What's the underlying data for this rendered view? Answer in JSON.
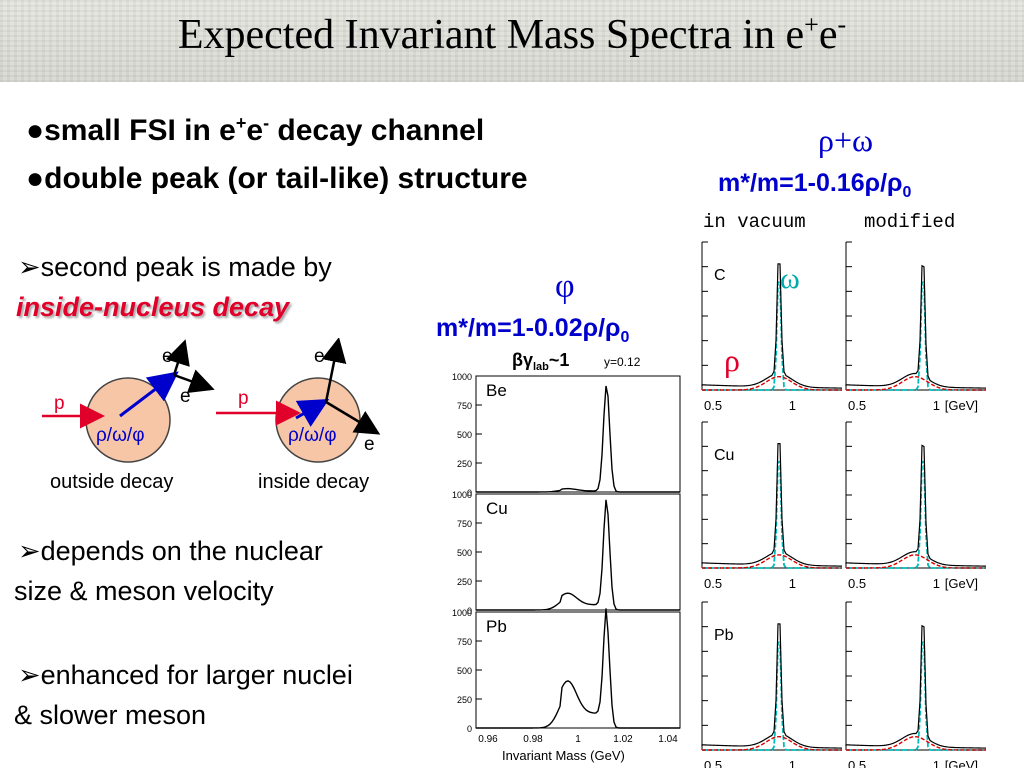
{
  "title": {
    "main": "Expected Invariant Mass Spectra in e",
    "sup1": "+",
    "mid": "e",
    "sup2": "-"
  },
  "bullets": [
    {
      "pre": "small FSI in e",
      "sup1": "+",
      "mid": "e",
      "sup2": "-",
      "post": " decay channel"
    },
    {
      "text": "double peak (or tail-like) structure"
    }
  ],
  "points": {
    "p1_line1": "second peak is made by",
    "p1_line2": "inside-nucleus decay",
    "p2_line1": "depends on the nuclear",
    "p2_line2": "size & meson velocity",
    "p3_line1": "enhanced for larger nuclei",
    "p3_line2": "& slower meson"
  },
  "diagram": {
    "e": "e",
    "p": "p",
    "meson": "ρ/ω/φ",
    "outside_caption": "outside decay",
    "inside_caption": "inside decay"
  },
  "phi_panel": {
    "symbol": "φ",
    "formula_pre": "m*/m=1-0.02ρ/ρ",
    "formula_sub": "0",
    "bg_label": "βγ",
    "bg_sub": "lab",
    "bg_val": "~1",
    "y_label": "y=0.12",
    "xlabel": "Invariant Mass (GeV)",
    "xticks": [
      "0.96",
      "0.98",
      "1",
      "1.02",
      "1.04"
    ],
    "yticks": [
      "1000",
      "750",
      "500",
      "250",
      "0"
    ],
    "panels": [
      "Be",
      "Cu",
      "Pb"
    ]
  },
  "rho_omega_panel": {
    "symbol": "ρ+ω",
    "formula_pre": "m*/m=1-0.16ρ/ρ",
    "formula_sub": "0",
    "col1": "in vacuum",
    "col2": "modified",
    "omega": "ω",
    "rho": "ρ",
    "rows": [
      "C",
      "Cu",
      "Pb"
    ],
    "tick_05": "0.5",
    "tick_1": "1",
    "unit": "[GeV]"
  },
  "colors": {
    "blue": "#0000cc",
    "red": "#e0002a",
    "cyan": "#00aaaa",
    "circle": "#f6c6a6"
  }
}
